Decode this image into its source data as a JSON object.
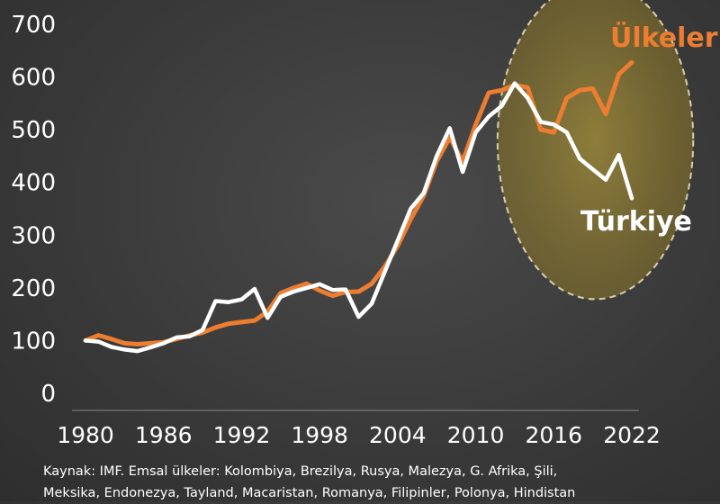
{
  "chart_data": {
    "type": "line",
    "x": [
      1980,
      1981,
      1982,
      1983,
      1984,
      1985,
      1986,
      1987,
      1988,
      1989,
      1990,
      1991,
      1992,
      1993,
      1994,
      1995,
      1996,
      1997,
      1998,
      1999,
      2000,
      2001,
      2002,
      2003,
      2004,
      2005,
      2006,
      2007,
      2008,
      2009,
      2010,
      2011,
      2012,
      2013,
      2014,
      2015,
      2016,
      2017,
      2018,
      2019,
      2020,
      2021,
      2022
    ],
    "series": [
      {
        "name": "Ülkeler",
        "color": "#ed7d31",
        "values": [
          100,
          110,
          103,
          95,
          93,
          95,
          97,
          103,
          110,
          115,
          125,
          132,
          135,
          138,
          155,
          190,
          200,
          208,
          195,
          185,
          192,
          193,
          208,
          240,
          280,
          330,
          375,
          440,
          485,
          440,
          510,
          570,
          575,
          585,
          580,
          500,
          495,
          560,
          575,
          578,
          530,
          605,
          628
        ]
      },
      {
        "name": "Türkiye",
        "color": "#ffffff",
        "values": [
          100,
          98,
          88,
          83,
          80,
          87,
          95,
          106,
          108,
          120,
          175,
          173,
          178,
          198,
          143,
          183,
          193,
          200,
          207,
          196,
          197,
          145,
          170,
          230,
          290,
          350,
          380,
          450,
          503,
          420,
          495,
          525,
          545,
          588,
          560,
          515,
          510,
          495,
          445,
          425,
          405,
          452,
          370
        ]
      }
    ],
    "xticks": [
      "1980",
      "1986",
      "1992",
      "1998",
      "2004",
      "2010",
      "2016",
      "2022"
    ],
    "yticks": [
      "0",
      "100",
      "200",
      "300",
      "400",
      "500",
      "600",
      "700"
    ],
    "ylim": [
      0,
      720
    ],
    "xlim": [
      1980,
      2022
    ],
    "grid": false,
    "highlight": "ellipse over 2016–2022",
    "highlight_color": "#d4b84a",
    "title": "",
    "xlabel": "",
    "ylabel": ""
  },
  "labels": {
    "series_a": "Ülkeler",
    "series_b": "Türkiye"
  },
  "source": {
    "line1": "Kaynak: IMF. Emsal ülkeler: Kolombiya, Brezilya, Rusya, Malezya, G. Afrika, Şili,",
    "line2": "Meksika, Endonezya, Tayland, Macaristan, Romanya, Filipinler, Polonya, Hindistan"
  }
}
